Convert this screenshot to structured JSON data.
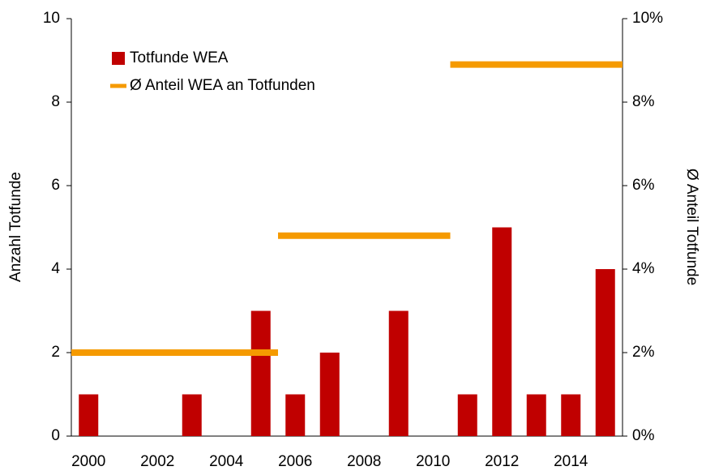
{
  "chart_data": {
    "type": "bar_step",
    "categories": [
      "2000",
      null,
      "2002",
      null,
      "2004",
      null,
      "2006",
      null,
      "2008",
      null,
      "2010",
      null,
      "2012",
      null,
      "2014",
      null
    ],
    "series": [
      {
        "name": "Totfunde WEA",
        "color": "#c00000",
        "kind": "bar",
        "values": [
          1,
          0,
          0,
          1,
          0,
          3,
          1,
          2,
          0,
          3,
          0,
          1,
          5,
          1,
          1,
          4
        ]
      },
      {
        "name": "Ø Anteil WEA an Totfunden",
        "color": "#f59a00",
        "kind": "step",
        "axis": "y2",
        "values": [
          2,
          2,
          2,
          2,
          2,
          2,
          4.8,
          4.8,
          4.8,
          4.8,
          4.8,
          8.9,
          8.9,
          8.9,
          8.9,
          8.9
        ]
      }
    ],
    "ylabel": "Anzahl Totfunde",
    "y2label": "Ø Anteil Totfunde",
    "ylim": [
      0,
      10
    ],
    "yticks": [
      0,
      2,
      4,
      6,
      8,
      10
    ],
    "y2lim": [
      0,
      10
    ],
    "y2ticks": [
      {
        "value": 0,
        "label": "0%"
      },
      {
        "value": 2,
        "label": "2%"
      },
      {
        "value": 4,
        "label": "4%"
      },
      {
        "value": 6,
        "label": "6%"
      },
      {
        "value": 8,
        "label": "8%"
      },
      {
        "value": 10,
        "label": "10%"
      }
    ],
    "legend": "upper-left"
  }
}
